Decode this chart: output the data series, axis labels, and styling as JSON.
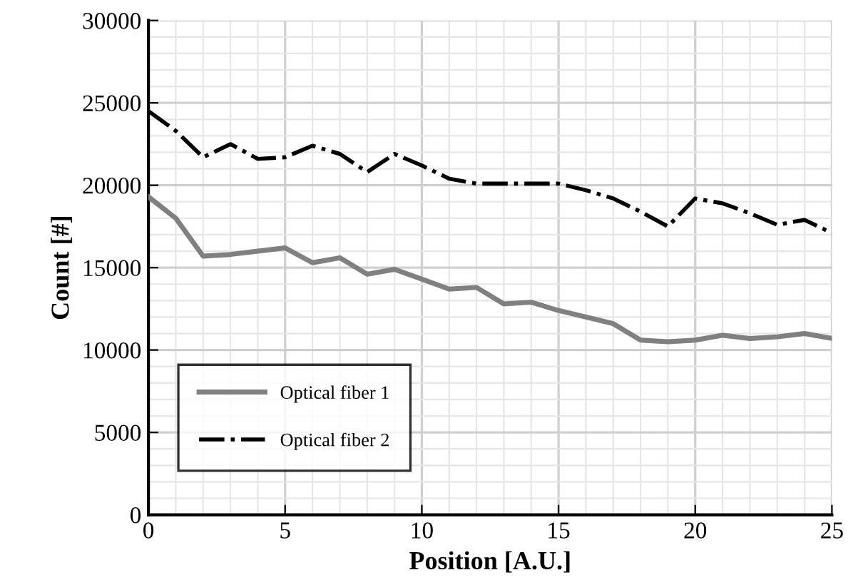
{
  "chart_data": {
    "type": "line",
    "xlabel": "Position [A.U.]",
    "ylabel": "Count [#]",
    "x": [
      0,
      1,
      2,
      3,
      4,
      5,
      6,
      7,
      8,
      9,
      10,
      11,
      12,
      13,
      14,
      15,
      16,
      17,
      18,
      19,
      20,
      21,
      22,
      23,
      24,
      25
    ],
    "series": [
      {
        "name": "Optical fiber 1",
        "color": "#808080",
        "line_style": "solid",
        "values": [
          19300,
          18000,
          15700,
          15800,
          16000,
          16200,
          15300,
          15600,
          14600,
          14900,
          14300,
          13700,
          13800,
          12800,
          12900,
          12400,
          12000,
          11600,
          10600,
          10500,
          10600,
          10900,
          10700,
          10800,
          11000,
          10700
        ]
      },
      {
        "name": "Optical fiber 2",
        "color": "#000000",
        "line_style": "dashdot",
        "values": [
          24500,
          23300,
          21700,
          22500,
          21600,
          21700,
          22400,
          21900,
          20800,
          21900,
          21200,
          20400,
          20100,
          20100,
          20100,
          20100,
          19700,
          19200,
          18400,
          17500,
          19200,
          18900,
          18300,
          17600,
          17900,
          17100
        ]
      }
    ],
    "xlim": [
      0,
      25
    ],
    "ylim": [
      0,
      30000
    ],
    "xticks": [
      0,
      5,
      10,
      15,
      20,
      25
    ],
    "yticks": [
      0,
      5000,
      10000,
      15000,
      20000,
      25000,
      30000
    ],
    "grid": true,
    "legend": "bottom left",
    "marker": "none"
  }
}
